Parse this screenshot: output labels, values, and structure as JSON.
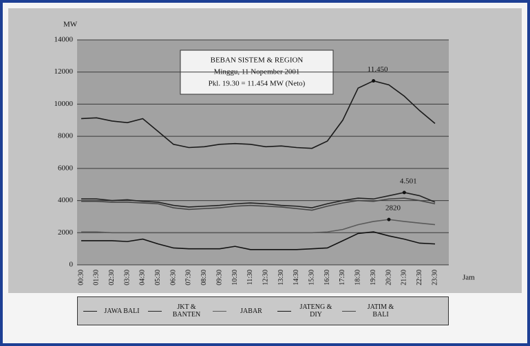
{
  "chart_data": {
    "type": "line",
    "y_label": "MW",
    "x_label": "Jam",
    "info_box": [
      "BEBAN SISTEM & REGION",
      "Minggu, 11 Nopember 2001",
      "Pkl. 19.30 = 11.454 MW (Neto)"
    ],
    "categories": [
      "00:30",
      "01:30",
      "02:30",
      "03:30",
      "04:30",
      "05:30",
      "06:30",
      "07:30",
      "08:30",
      "09:30",
      "10:30",
      "11:30",
      "12:30",
      "13:30",
      "14:30",
      "15:30",
      "16:30",
      "17:30",
      "18:30",
      "19:30",
      "20:30",
      "21:30",
      "22:30",
      "23:30"
    ],
    "ylim": [
      0,
      14000
    ],
    "yticks": [
      0,
      2000,
      4000,
      6000,
      8000,
      10000,
      12000,
      14000
    ],
    "grid": true,
    "series": [
      {
        "name": "JAWA BALI",
        "color": "#1a1a1a",
        "values": [
          9100,
          9150,
          8950,
          8850,
          9100,
          8300,
          7500,
          7300,
          7350,
          7500,
          7550,
          7500,
          7350,
          7400,
          7300,
          7250,
          7700,
          9000,
          11000,
          11450,
          11200,
          10500,
          9600,
          8800
        ],
        "value_labels": [
          null,
          null,
          null,
          null,
          null,
          null,
          null,
          null,
          null,
          null,
          null,
          null,
          null,
          null,
          null,
          null,
          null,
          null,
          null,
          "11.450",
          null,
          null,
          null,
          null
        ]
      },
      {
        "name": "JKT & BANTEN",
        "color": "#222222",
        "values": [
          4100,
          4100,
          4000,
          4050,
          3950,
          3900,
          3700,
          3600,
          3650,
          3700,
          3800,
          3850,
          3800,
          3700,
          3650,
          3550,
          3800,
          4000,
          4150,
          4100,
          4300,
          4501,
          4300,
          3900
        ],
        "value_labels": [
          null,
          null,
          null,
          null,
          null,
          null,
          null,
          null,
          null,
          null,
          null,
          null,
          null,
          null,
          null,
          null,
          null,
          null,
          null,
          null,
          null,
          "4.501",
          null,
          null
        ]
      },
      {
        "name": "JABAR",
        "color": "#5a5a5a",
        "values": [
          2050,
          2050,
          2000,
          2000,
          2000,
          2000,
          2000,
          2000,
          2000,
          2000,
          2000,
          2000,
          2000,
          2000,
          2000,
          2000,
          2050,
          2200,
          2500,
          2700,
          2820,
          2700,
          2600,
          2500
        ],
        "value_labels": [
          null,
          null,
          null,
          null,
          null,
          null,
          null,
          null,
          null,
          null,
          null,
          null,
          null,
          null,
          null,
          null,
          null,
          null,
          null,
          null,
          "2820",
          null,
          null,
          null
        ]
      },
      {
        "name": "JATENG & DIY",
        "color": "#111111",
        "values": [
          1500,
          1500,
          1500,
          1450,
          1600,
          1300,
          1050,
          1000,
          1000,
          1000,
          1150,
          950,
          950,
          950,
          950,
          1000,
          1050,
          1500,
          1950,
          2050,
          1800,
          1600,
          1350,
          1300
        ]
      },
      {
        "name": "JATIM & BALI",
        "color": "#444444",
        "values": [
          3950,
          3950,
          3900,
          3900,
          3850,
          3800,
          3550,
          3450,
          3500,
          3550,
          3650,
          3700,
          3650,
          3600,
          3500,
          3400,
          3650,
          3850,
          4000,
          3950,
          4100,
          4150,
          4000,
          3800
        ]
      }
    ]
  }
}
